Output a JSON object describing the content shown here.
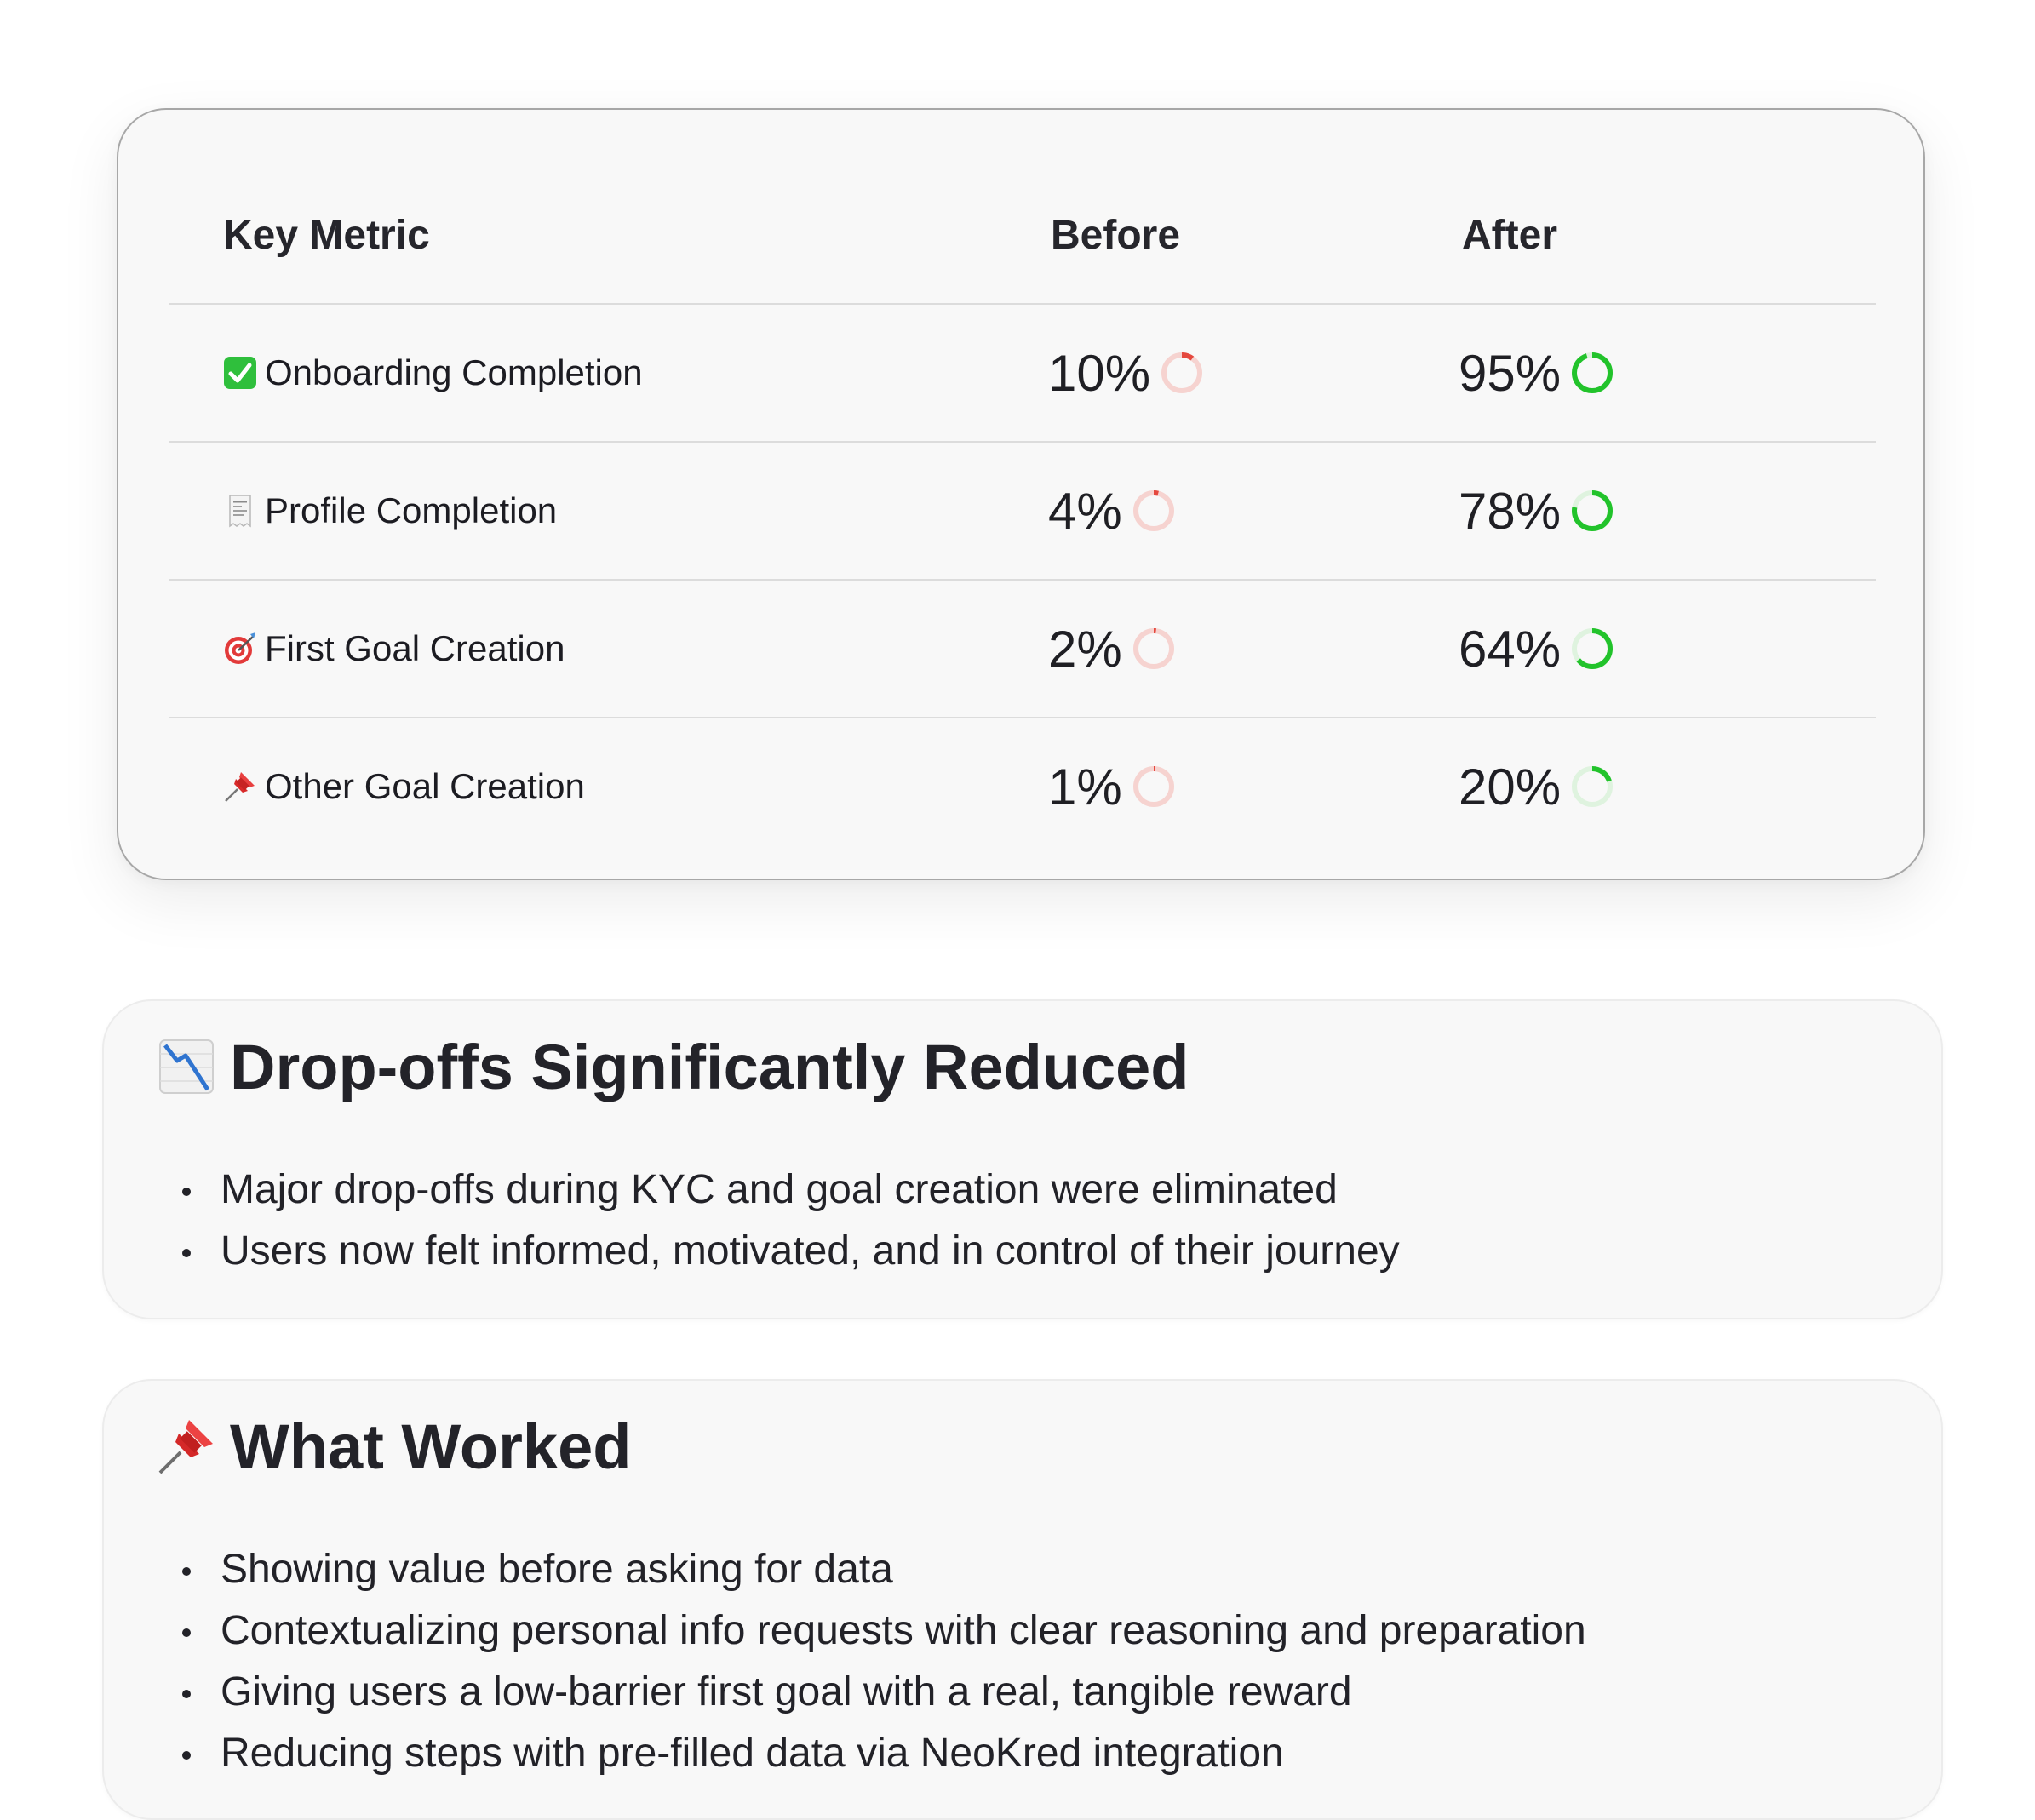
{
  "table": {
    "headers": {
      "metric": "Key Metric",
      "before": "Before",
      "after": "After"
    },
    "rows": [
      {
        "icon": "check-mark-button-icon",
        "label": "Onboarding Completion",
        "before": "10%",
        "after": "95%",
        "before_fraction": 0.1,
        "after_fraction": 0.95
      },
      {
        "icon": "receipt-icon",
        "label": "Profile Completion",
        "before": "4%",
        "after": "78%",
        "before_fraction": 0.04,
        "after_fraction": 0.78
      },
      {
        "icon": "direct-hit-target-icon",
        "label": "First Goal Creation",
        "before": "2%",
        "after": "64%",
        "before_fraction": 0.02,
        "after_fraction": 0.64
      },
      {
        "icon": "pushpin-icon",
        "label": "Other Goal Creation",
        "before": "1%",
        "after": "20%",
        "before_fraction": 0.01,
        "after_fraction": 0.2
      }
    ],
    "colors": {
      "before_ring": "#e5483e",
      "before_track": "#f6d3d0",
      "after_ring": "#22c32b",
      "after_track": "#dff3df"
    }
  },
  "dropoffs": {
    "icon": "chart-decreasing-icon",
    "title": "Drop-offs Significantly Reduced",
    "bullets": [
      "Major drop-offs during KYC and goal creation were eliminated",
      "Users now felt informed, motivated, and in control of their journey"
    ]
  },
  "worked": {
    "icon": "pushpin-icon",
    "title": "What Worked",
    "bullets": [
      "Showing value before asking for data",
      "Contextualizing personal info requests with clear reasoning and preparation",
      "Giving users a low-barrier first goal with a real, tangible reward",
      "Reducing steps with pre-filled data via NeoKred integration"
    ]
  }
}
